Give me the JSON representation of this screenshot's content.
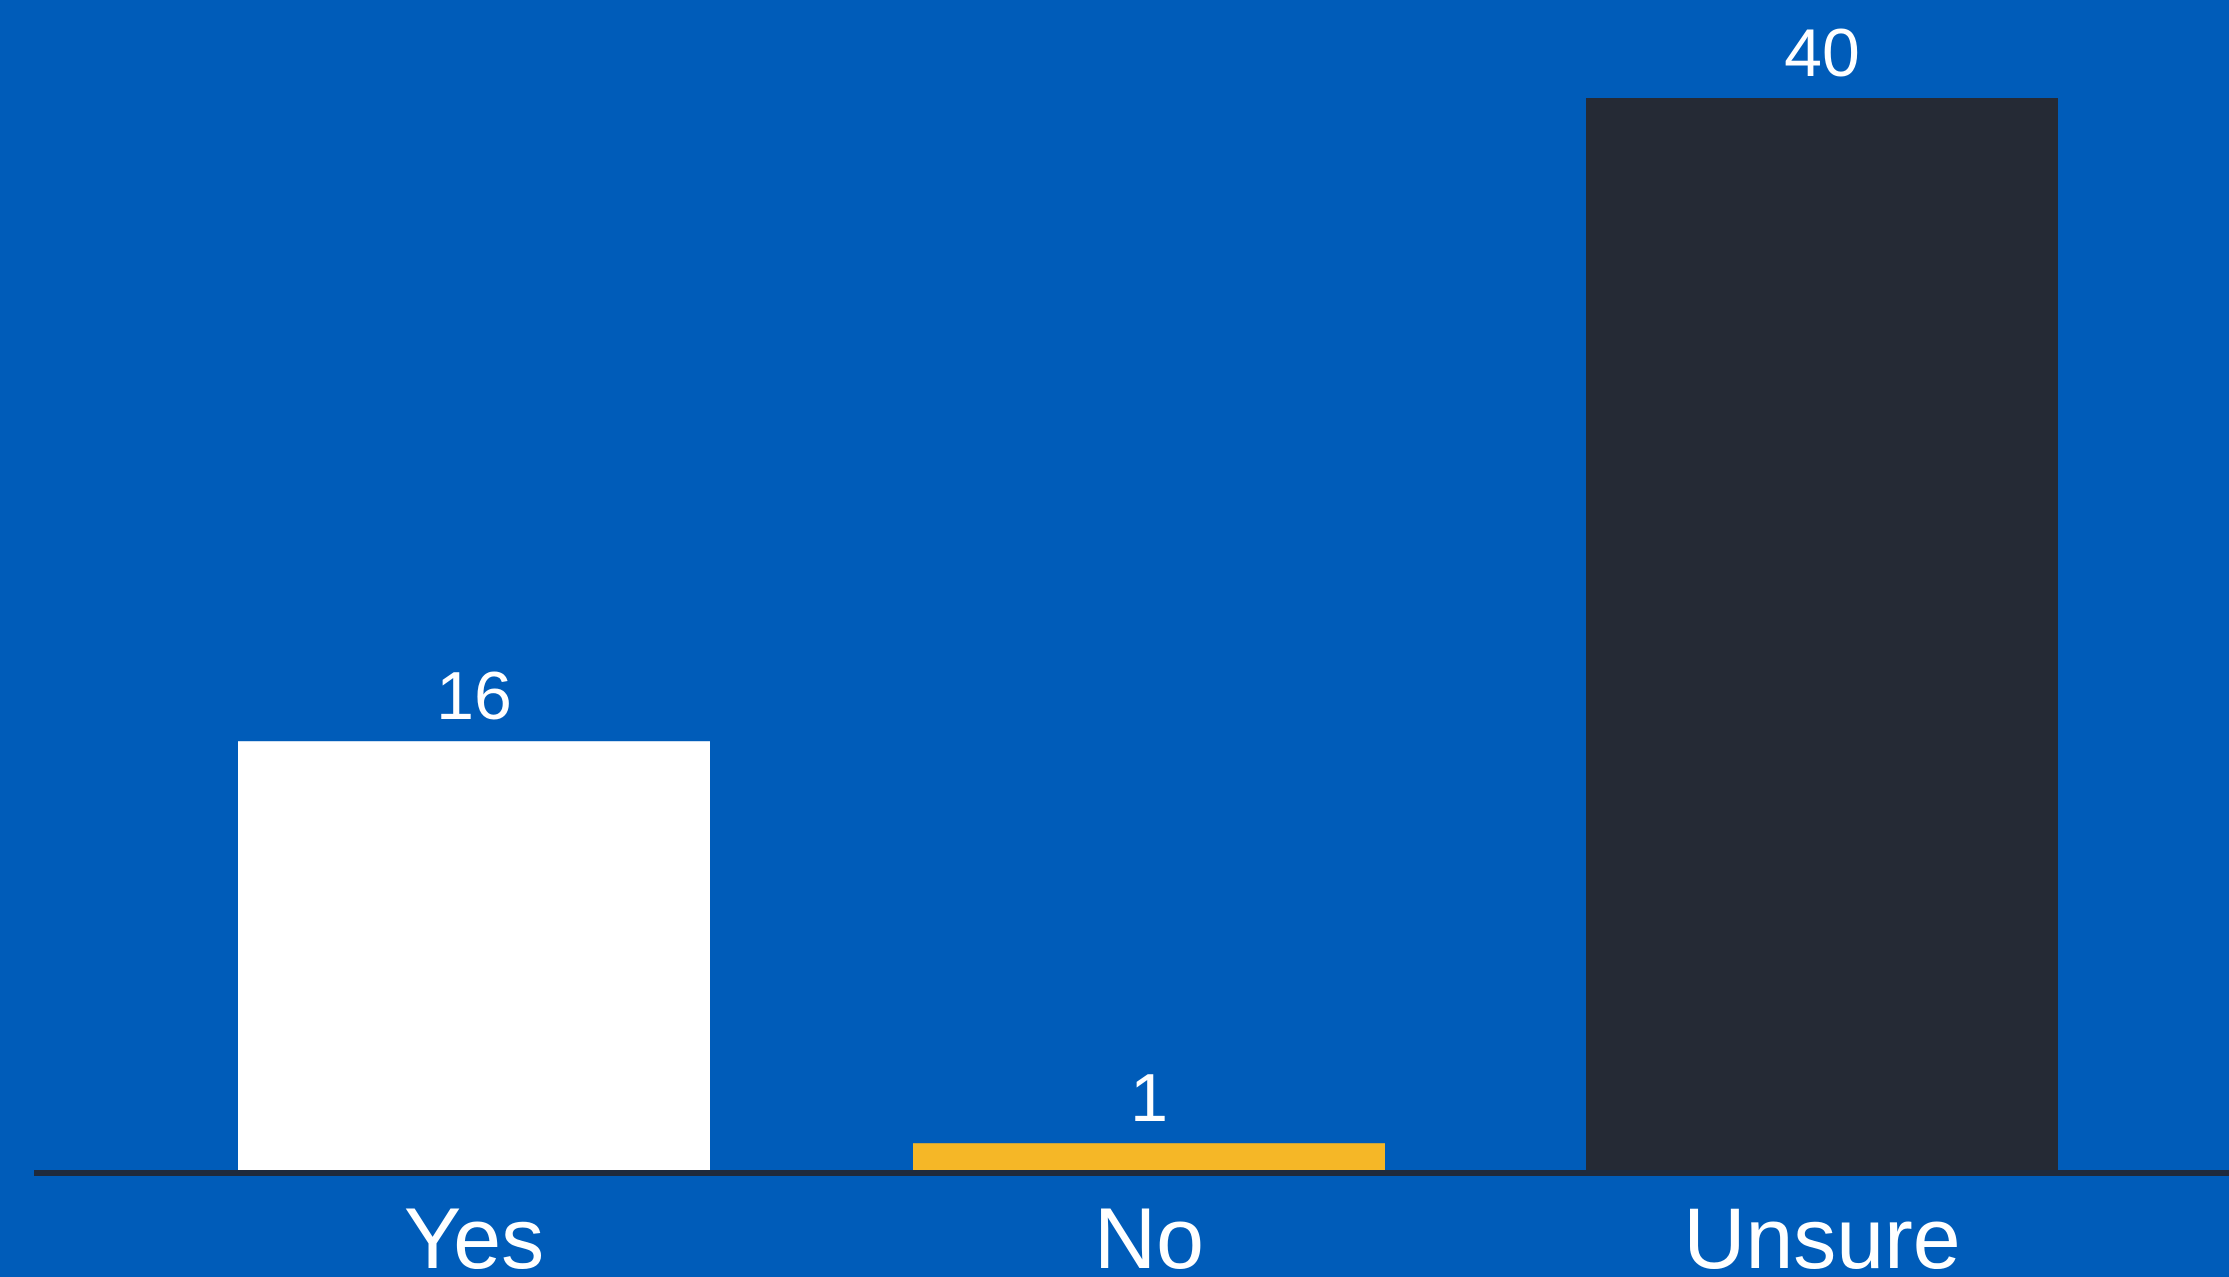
{
  "chart_data": {
    "type": "bar",
    "title": "",
    "xlabel": "",
    "ylabel": "",
    "categories": [
      "Yes",
      "No",
      "Unsure"
    ],
    "values": [
      16,
      1,
      40
    ],
    "value_labels": [
      "16",
      "1",
      "40"
    ],
    "ylim": [
      0,
      40
    ],
    "grid": false,
    "legend": "none",
    "colors": {
      "background": "#005cb9",
      "bars": [
        "#ffffff",
        "#f5b727",
        "#252a35"
      ],
      "axis": "#1f2a3c",
      "text": "#ffffff"
    }
  }
}
